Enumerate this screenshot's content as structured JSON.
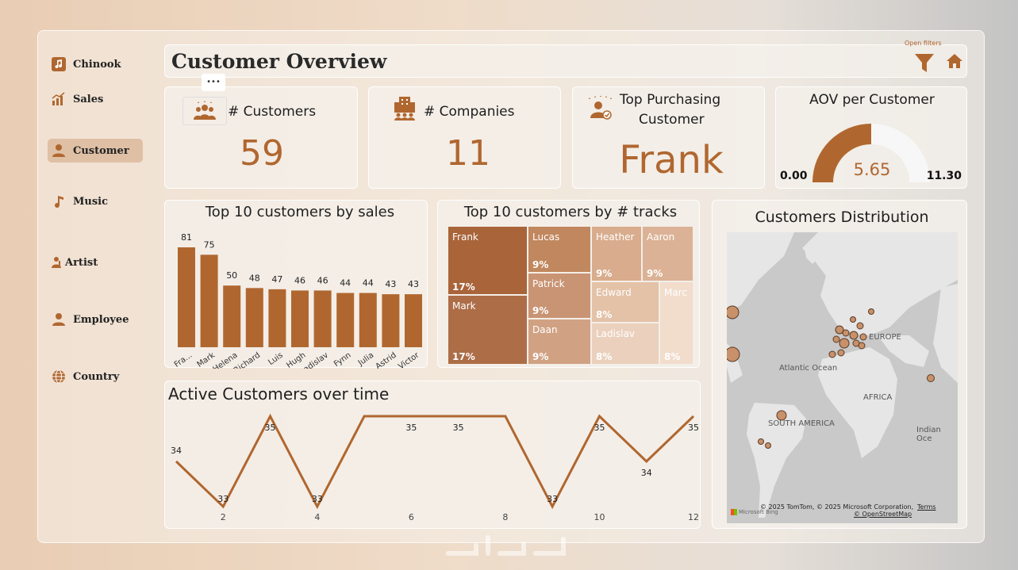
{
  "sidebar": {
    "items": [
      {
        "label": "Chinook",
        "icon": "music-note-icon"
      },
      {
        "label": "Sales",
        "icon": "bar-chart-icon"
      },
      {
        "label": "Customer",
        "icon": "person-icon",
        "active": true
      },
      {
        "label": "Music",
        "icon": "music-note-icon"
      },
      {
        "label": "Artist",
        "icon": "artist-icon"
      },
      {
        "label": "Employee",
        "icon": "person-icon"
      },
      {
        "label": "Country",
        "icon": "globe-icon"
      }
    ]
  },
  "header": {
    "title": "Customer Overview",
    "open_filters": "Open filters",
    "more_options": "•••"
  },
  "kpis": {
    "customers": {
      "label": "# Customers",
      "value": "59"
    },
    "companies": {
      "label": "# Companies",
      "value": "11"
    },
    "top_customer": {
      "label_line1": "Top Purchasing",
      "label_line2": "Customer",
      "value": "Frank"
    },
    "aov": {
      "label": "AOV per Customer",
      "value": "5.65",
      "min": "0.00",
      "max": "11.30",
      "fraction": 0.5
    }
  },
  "colors": {
    "accent": "#b0672f",
    "gauge_bg": "#f7f7f7"
  },
  "bar_chart": {
    "title": "Top 10 customers by sales",
    "chart_data": {
      "type": "bar",
      "categories": [
        "Fra...",
        "Mark",
        "Helena",
        "Richard",
        "Luis",
        "Hugh",
        "Ladislav",
        "Fynn",
        "Julia",
        "Astrid",
        "Victor"
      ],
      "values": [
        81,
        75,
        50,
        48,
        47,
        46,
        46,
        44,
        44,
        43,
        43
      ],
      "ylim": [
        0,
        90
      ]
    }
  },
  "treemap": {
    "title": "Top 10 customers by # tracks",
    "cells": [
      {
        "name": "Frank",
        "pct": "17%"
      },
      {
        "name": "Mark",
        "pct": "17%"
      },
      {
        "name": "Lucas",
        "pct": "9%"
      },
      {
        "name": "Patrick",
        "pct": "9%"
      },
      {
        "name": "Daan",
        "pct": "9%"
      },
      {
        "name": "Heather",
        "pct": "9%"
      },
      {
        "name": "Aaron",
        "pct": "9%"
      },
      {
        "name": "Edward",
        "pct": "8%"
      },
      {
        "name": "Marc",
        "pct": "8%"
      },
      {
        "name": "Ladislav",
        "pct": "8%"
      }
    ]
  },
  "line_chart": {
    "title": "Active Customers over time",
    "chart_data": {
      "type": "line",
      "x": [
        1,
        2,
        3,
        4,
        5,
        6,
        7,
        8,
        9,
        10,
        11,
        12
      ],
      "values": [
        34,
        33,
        35,
        33,
        35,
        35,
        35,
        35,
        33,
        35,
        34,
        35
      ],
      "labels": [
        "34",
        "33",
        "35",
        "33",
        "",
        "35",
        "35",
        "",
        "33",
        "35",
        "34",
        "35"
      ],
      "x_ticks": [
        "2",
        "4",
        "6",
        "8",
        "10",
        "12"
      ],
      "ylim": [
        33,
        35
      ]
    }
  },
  "map": {
    "title": "Customers Distribution",
    "labels": {
      "europe": "EUROPE",
      "atlantic": "Atlantic Ocean",
      "africa": "AFRICA",
      "south_america": "SOUTH AMERICA",
      "indian": "Indian Oce"
    },
    "attribution": "© 2025 TomTom, © 2025 Microsoft Corporation,",
    "terms": "Terms",
    "osm": "© OpenStreetMap",
    "bing": "Microsoft Bing"
  }
}
